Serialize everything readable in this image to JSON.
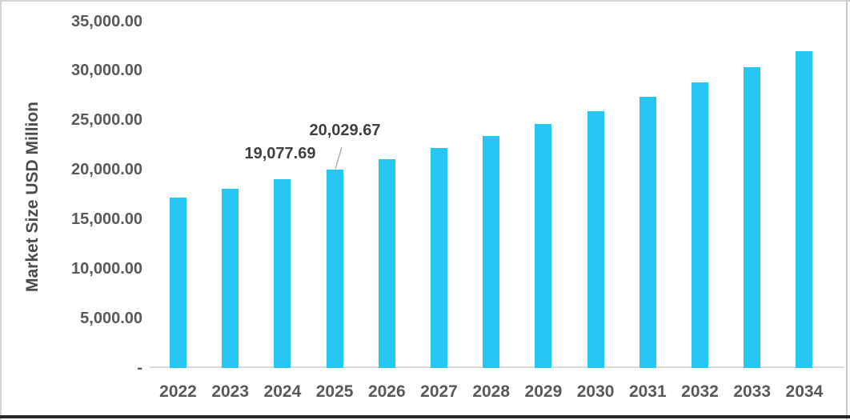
{
  "chart_data": {
    "type": "bar",
    "title": "",
    "xlabel": "",
    "ylabel": "Market Size USD Million",
    "categories": [
      "2022",
      "2023",
      "2024",
      "2025",
      "2026",
      "2027",
      "2028",
      "2029",
      "2030",
      "2031",
      "2032",
      "2033",
      "2034"
    ],
    "values": [
      17200,
      18100,
      19077.69,
      20029.67,
      21100,
      22230,
      23420,
      24670,
      25990,
      27380,
      28850,
      30390,
      32020
    ],
    "yticks": [
      {
        "label": "35,000.00",
        "value": 35000
      },
      {
        "label": "30,000.00",
        "value": 30000
      },
      {
        "label": "25,000.00",
        "value": 25000
      },
      {
        "label": "20,000.00",
        "value": 20000
      },
      {
        "label": "15,000.00",
        "value": 15000
      },
      {
        "label": "10,000.00",
        "value": 10000
      },
      {
        "label": "5,000.00",
        "value": 5000
      },
      {
        "label": "-",
        "value": 0
      }
    ],
    "ylim": [
      0,
      35000
    ],
    "ytick_interval": 5000,
    "grid": false,
    "legend": false,
    "annotations": [
      {
        "label": "19,077.69",
        "target_year": "2024",
        "value": 19077.69,
        "has_leader_line": false
      },
      {
        "label": "20,029.67",
        "target_year": "2025",
        "value": 20029.67,
        "has_leader_line": true
      }
    ],
    "colors": {
      "bar": "#25C7F2",
      "axis_line": "#D9D9D9",
      "tick_text": "#595959",
      "title_text": "#4D4D4D",
      "label_text": "#404040",
      "leader": "#A6A6A6",
      "background": "#FFFFFF"
    }
  }
}
